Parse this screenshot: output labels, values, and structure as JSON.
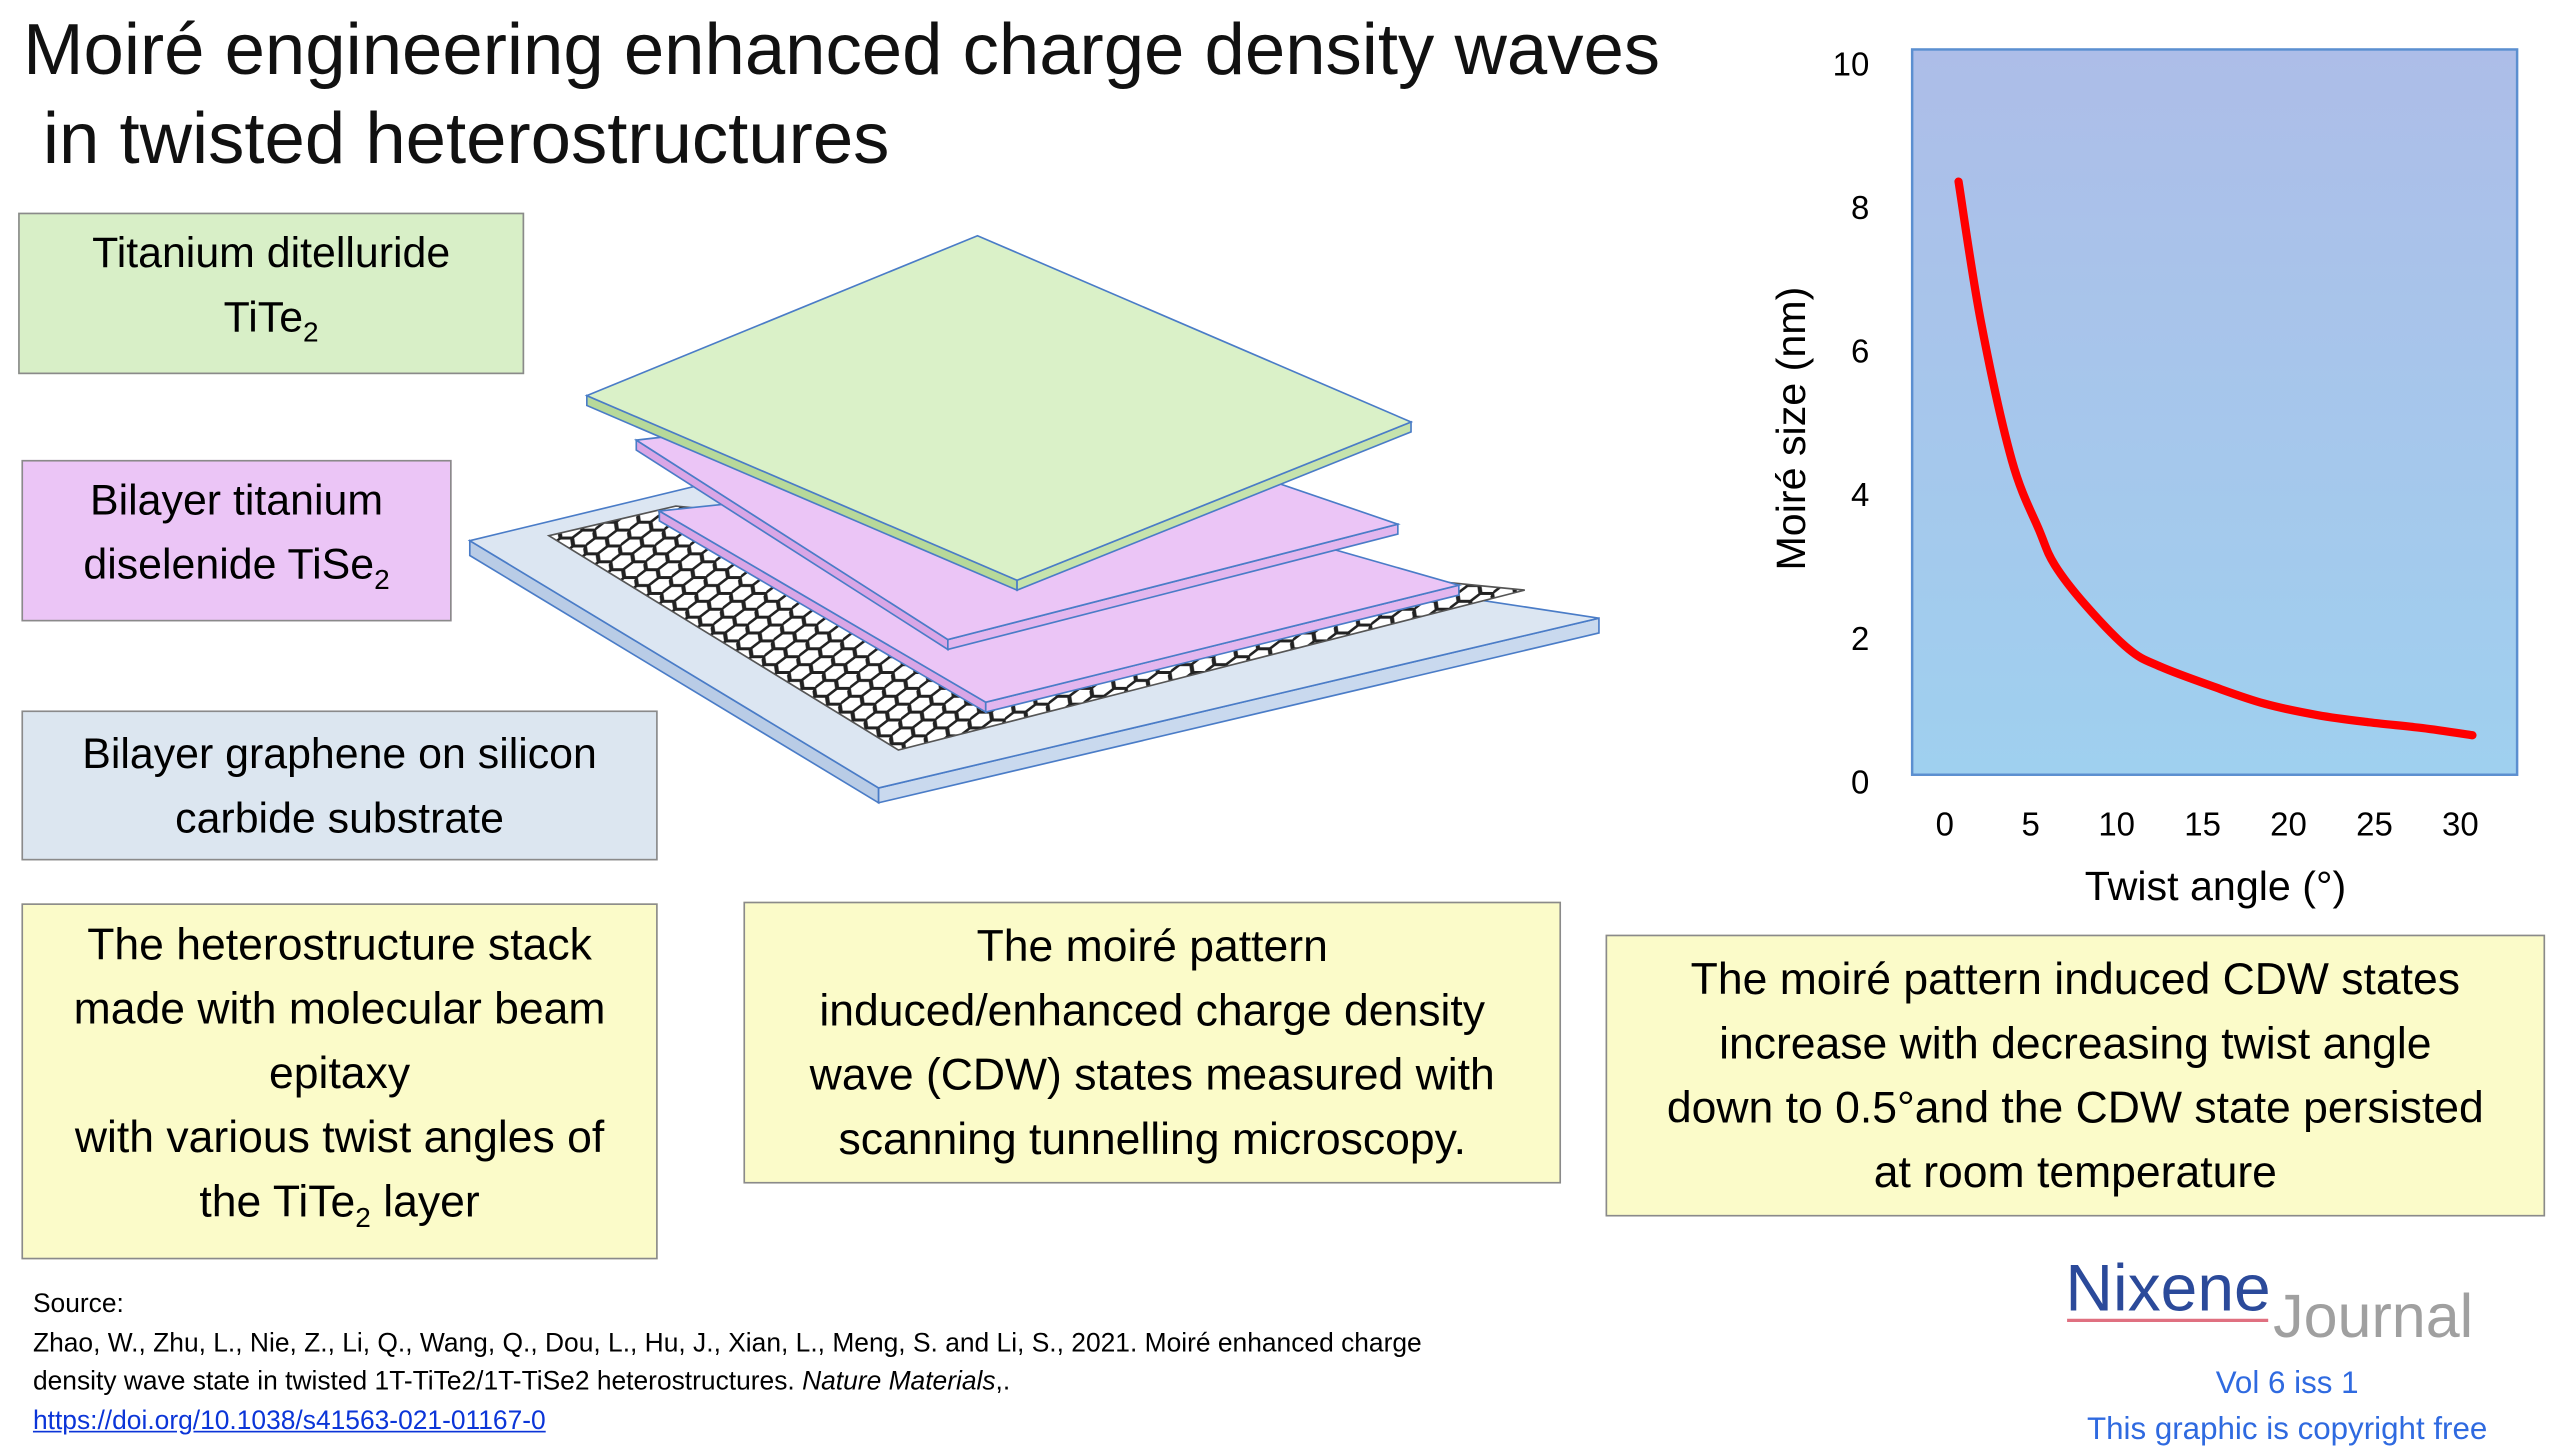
{
  "title": {
    "line1": "Moiré engineering enhanced charge density waves",
    "line2": "in twisted heterostructures"
  },
  "labels": {
    "tite2": {
      "line1": "Titanium ditelluride",
      "formula": "TiTe",
      "sub": "2"
    },
    "tise2": {
      "line1": "Bilayer titanium",
      "line2": "diselenide TiSe",
      "sub": "2"
    },
    "graphene": {
      "line1": "Bilayer graphene on silicon",
      "line2": "carbide substrate"
    }
  },
  "notes": {
    "stack": {
      "l1": "The heterostructure stack",
      "l2": "made with molecular beam",
      "l3": "epitaxy",
      "l4": "with various twist angles of",
      "l5a": "the TiTe",
      "l5sub": "2",
      "l5b": " layer"
    },
    "stm": {
      "l1": "The moiré pattern",
      "l2": "induced/enhanced charge density",
      "l3": "wave (CDW) states measured with",
      "l4": "scanning tunnelling microscopy."
    },
    "result": {
      "l1": "The moiré pattern induced CDW states",
      "l2": "increase with decreasing twist angle",
      "l3": "down to 0.5°and the CDW state persisted",
      "l4": "at room temperature"
    }
  },
  "colors": {
    "tite2": "#d8efc7",
    "tise2": "#ebc5f6",
    "substrate": "#dce6f0",
    "note": "#fbfbc9",
    "curve": "#ff0000",
    "plot_top": "#adbde8",
    "plot_bottom": "#9fd0ef",
    "brand": "#2b4a9a"
  },
  "chart_data": {
    "type": "line",
    "xlabel": "Twist angle (°)",
    "ylabel": "Moiré size (nm)",
    "xlim": [
      -1.9,
      33.3
    ],
    "ylim": [
      0.1,
      10.2
    ],
    "xticks": [
      0,
      5,
      10,
      15,
      20,
      25,
      30
    ],
    "yticks": [
      0,
      2,
      4,
      6,
      8,
      10
    ],
    "grid": false,
    "series": [
      {
        "color": "#ff0000",
        "x": [
          0.8,
          2.1,
          3.9,
          5.5,
          6.4,
          8.2,
          10.7,
          12.5,
          15.6,
          18.6,
          21.7,
          24.7,
          27.8,
          30.7
        ],
        "y": [
          8.36,
          6.41,
          4.48,
          3.5,
          3.02,
          2.46,
          1.85,
          1.61,
          1.33,
          1.09,
          0.93,
          0.83,
          0.75,
          0.65
        ]
      }
    ]
  },
  "source": {
    "heading": "Source:",
    "line1": "Zhao, W., Zhu, L., Nie, Z., Li, Q., Wang, Q., Dou, L., Hu, J., Xian, L., Meng, S. and Li, S., 2021. Moiré enhanced charge",
    "line2": "density wave state in twisted 1T-TiTe2/1T-TiSe2 heterostructures. ",
    "journal": "Nature Materials",
    "tail": ",.",
    "doi": "https://doi.org/10.1038/s41563-021-01167-0"
  },
  "logo": {
    "part1": "Nixene",
    "part2": "Journal"
  },
  "footer": {
    "volume": "Vol 6 iss 1",
    "copyright": "This graphic is copyright free"
  }
}
